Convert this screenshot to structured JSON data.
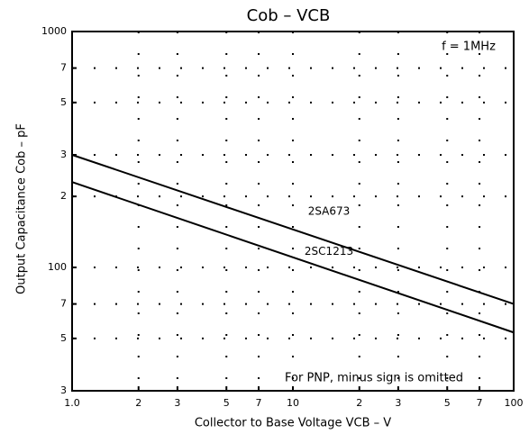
{
  "chart_data": {
    "type": "line",
    "title": "Cob – VCB",
    "x_label": "Collector to Base Voltage VCB – V",
    "y_label": "Output Capacitance Cob – pF",
    "annotations": [
      "f = 1MHz",
      "For PNP, minus sign is omitted"
    ],
    "x": [
      1,
      100
    ],
    "series": [
      {
        "name": "2SA673",
        "color": "#000000",
        "values": [
          300,
          70
        ]
      },
      {
        "name": "2SC1213",
        "color": "#000000",
        "values": [
          230,
          53
        ]
      }
    ],
    "xscale": "log",
    "yscale": "log",
    "xlim": [
      1,
      100
    ],
    "ylim": [
      30,
      1000
    ],
    "xticks": [
      {
        "value": 1,
        "label": "1.0"
      },
      2,
      3,
      5,
      7,
      10,
      {
        "value": 20,
        "label": "2"
      },
      {
        "value": 30,
        "label": "3"
      },
      {
        "value": 50,
        "label": "5"
      },
      {
        "value": 70,
        "label": "7"
      },
      100
    ],
    "yticks": [
      {
        "value": 30,
        "label": "3"
      },
      {
        "value": 50,
        "label": "5"
      },
      {
        "value": 70,
        "label": "7"
      },
      100,
      {
        "value": 200,
        "label": "2"
      },
      {
        "value": 300,
        "label": "3"
      },
      {
        "value": 500,
        "label": "5"
      },
      {
        "value": 700,
        "label": "7"
      },
      1000
    ],
    "grid": true
  }
}
